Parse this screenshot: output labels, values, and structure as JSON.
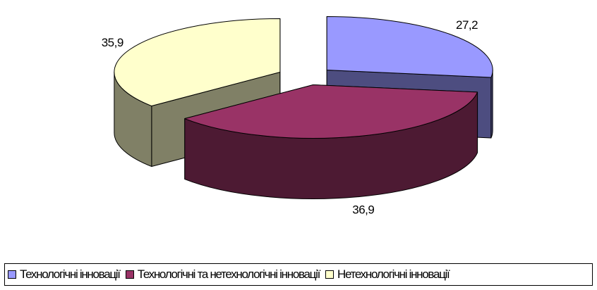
{
  "chart_data": {
    "type": "pie",
    "variant": "3d-exploded",
    "slices": [
      {
        "label": "Технологічні інновації",
        "value": 27.2,
        "value_label": "27,2",
        "color": "#9999ff",
        "side_color": "#4d4d80"
      },
      {
        "label": "Технологічні та нетехнологічні інновації",
        "value": 36.9,
        "value_label": "36,9",
        "color": "#993366",
        "side_color": "#4d1a33"
      },
      {
        "label": "Нетехнологічні інновації",
        "value": 35.9,
        "value_label": "35,9",
        "color": "#ffffcc",
        "side_color": "#808066"
      }
    ],
    "legend_position": "bottom"
  }
}
